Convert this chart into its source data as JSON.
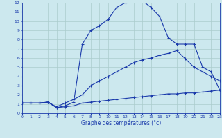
{
  "xlabel": "Graphe des températures (°c)",
  "bg_color": "#cce8ee",
  "grid_color": "#aacccc",
  "line_color": "#1a3aab",
  "xlim": [
    0,
    23
  ],
  "ylim": [
    0,
    12
  ],
  "x_ticks": [
    0,
    1,
    2,
    3,
    4,
    5,
    6,
    7,
    8,
    9,
    10,
    11,
    12,
    13,
    14,
    15,
    16,
    17,
    18,
    19,
    20,
    21,
    22,
    23
  ],
  "y_ticks": [
    0,
    1,
    2,
    3,
    4,
    5,
    6,
    7,
    8,
    9,
    10,
    11,
    12
  ],
  "curve1_x": [
    0,
    1,
    2,
    3,
    4,
    5,
    6,
    7,
    8,
    9,
    10,
    11,
    12,
    13,
    14,
    15,
    16,
    17,
    18,
    19,
    20,
    21,
    22,
    23
  ],
  "curve1_y": [
    1.1,
    1.1,
    1.1,
    1.2,
    0.6,
    0.7,
    0.8,
    1.1,
    1.2,
    1.3,
    1.4,
    1.5,
    1.6,
    1.7,
    1.8,
    1.9,
    2.0,
    2.1,
    2.1,
    2.2,
    2.2,
    2.3,
    2.4,
    2.5
  ],
  "curve2_x": [
    0,
    1,
    2,
    3,
    4,
    5,
    6,
    7,
    8,
    9,
    10,
    11,
    12,
    13,
    14,
    15,
    16,
    17,
    18,
    19,
    20,
    21,
    22,
    23
  ],
  "curve2_y": [
    1.1,
    1.1,
    1.1,
    1.2,
    0.7,
    1.1,
    1.5,
    2.0,
    3.0,
    3.5,
    4.0,
    4.5,
    5.0,
    5.5,
    5.8,
    6.0,
    6.3,
    6.5,
    6.8,
    5.9,
    5.0,
    4.5,
    4.0,
    3.5
  ],
  "curve3_x": [
    0,
    1,
    2,
    3,
    4,
    5,
    6,
    7,
    8,
    9,
    10,
    11,
    12,
    13,
    14,
    15,
    16,
    17,
    18,
    19,
    20,
    21,
    22,
    23
  ],
  "curve3_y": [
    1.1,
    1.1,
    1.1,
    1.2,
    0.6,
    0.8,
    1.2,
    7.5,
    9.0,
    9.5,
    10.2,
    11.5,
    12.0,
    12.2,
    12.2,
    11.5,
    10.5,
    8.2,
    7.5,
    7.5,
    7.5,
    5.0,
    4.5,
    2.5
  ]
}
